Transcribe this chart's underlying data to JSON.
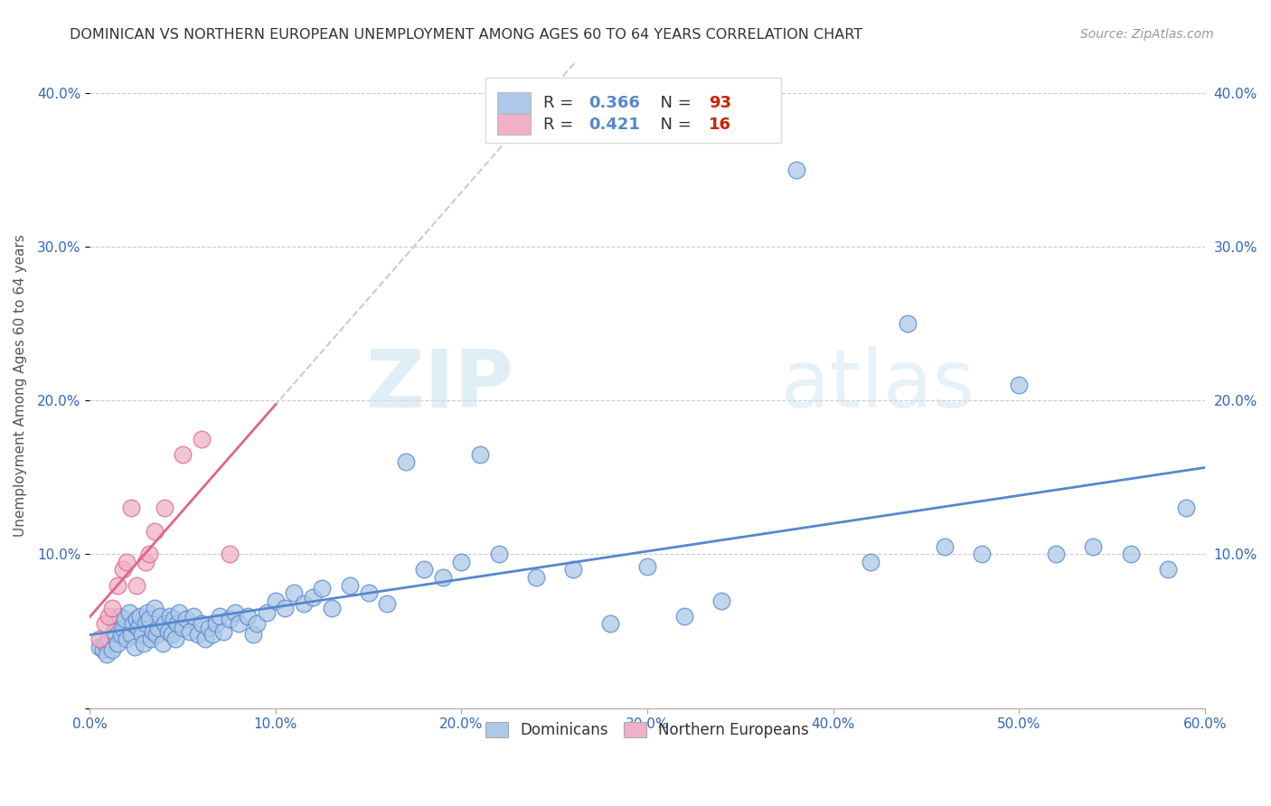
{
  "title": "DOMINICAN VS NORTHERN EUROPEAN UNEMPLOYMENT AMONG AGES 60 TO 64 YEARS CORRELATION CHART",
  "source": "Source: ZipAtlas.com",
  "ylabel": "Unemployment Among Ages 60 to 64 years",
  "xlim": [
    0.0,
    0.6
  ],
  "ylim": [
    0.0,
    0.42
  ],
  "xticks": [
    0.0,
    0.1,
    0.2,
    0.3,
    0.4,
    0.5,
    0.6
  ],
  "yticks": [
    0.0,
    0.1,
    0.2,
    0.3,
    0.4
  ],
  "xticklabels": [
    "0.0%",
    "10.0%",
    "20.0%",
    "30.0%",
    "40.0%",
    "50.0%",
    "60.0%"
  ],
  "yticklabels": [
    "",
    "10.0%",
    "20.0%",
    "30.0%",
    "40.0%"
  ],
  "dominicans_R": 0.366,
  "dominicans_N": 93,
  "northern_R": 0.421,
  "northern_N": 16,
  "dominican_color": "#adc8e8",
  "northern_color": "#f0b0c8",
  "dominican_line_color": "#5588cc",
  "northern_line_color": "#dd6688",
  "legend_label_1": "Dominicans",
  "legend_label_2": "Northern Europeans",
  "watermark_zip": "ZIP",
  "watermark_atlas": "atlas",
  "background_color": "#ffffff",
  "dominicans_x": [
    0.005,
    0.007,
    0.008,
    0.009,
    0.01,
    0.012,
    0.013,
    0.014,
    0.015,
    0.016,
    0.017,
    0.018,
    0.019,
    0.02,
    0.021,
    0.022,
    0.023,
    0.024,
    0.025,
    0.026,
    0.027,
    0.028,
    0.029,
    0.03,
    0.031,
    0.032,
    0.033,
    0.034,
    0.035,
    0.036,
    0.037,
    0.038,
    0.039,
    0.04,
    0.042,
    0.043,
    0.044,
    0.045,
    0.046,
    0.047,
    0.048,
    0.05,
    0.052,
    0.054,
    0.056,
    0.058,
    0.06,
    0.062,
    0.064,
    0.066,
    0.068,
    0.07,
    0.072,
    0.075,
    0.078,
    0.08,
    0.085,
    0.088,
    0.09,
    0.095,
    0.1,
    0.105,
    0.11,
    0.115,
    0.12,
    0.125,
    0.13,
    0.14,
    0.15,
    0.16,
    0.17,
    0.18,
    0.19,
    0.2,
    0.21,
    0.22,
    0.24,
    0.26,
    0.28,
    0.3,
    0.32,
    0.34,
    0.38,
    0.42,
    0.44,
    0.46,
    0.48,
    0.5,
    0.52,
    0.54,
    0.56,
    0.58,
    0.59
  ],
  "dominicans_y": [
    0.04,
    0.038,
    0.042,
    0.035,
    0.045,
    0.038,
    0.05,
    0.055,
    0.042,
    0.06,
    0.048,
    0.052,
    0.058,
    0.045,
    0.062,
    0.048,
    0.055,
    0.04,
    0.058,
    0.052,
    0.06,
    0.048,
    0.042,
    0.055,
    0.062,
    0.058,
    0.045,
    0.05,
    0.065,
    0.048,
    0.052,
    0.06,
    0.042,
    0.055,
    0.05,
    0.06,
    0.048,
    0.058,
    0.045,
    0.055,
    0.062,
    0.052,
    0.058,
    0.05,
    0.06,
    0.048,
    0.055,
    0.045,
    0.052,
    0.048,
    0.055,
    0.06,
    0.05,
    0.058,
    0.062,
    0.055,
    0.06,
    0.048,
    0.055,
    0.062,
    0.07,
    0.065,
    0.075,
    0.068,
    0.072,
    0.078,
    0.065,
    0.08,
    0.075,
    0.068,
    0.16,
    0.09,
    0.085,
    0.095,
    0.165,
    0.1,
    0.085,
    0.09,
    0.055,
    0.092,
    0.06,
    0.07,
    0.35,
    0.095,
    0.25,
    0.105,
    0.1,
    0.21,
    0.1,
    0.105,
    0.1,
    0.09,
    0.13
  ],
  "northern_x": [
    0.005,
    0.008,
    0.01,
    0.012,
    0.015,
    0.018,
    0.02,
    0.022,
    0.025,
    0.03,
    0.032,
    0.035,
    0.04,
    0.05,
    0.06,
    0.075
  ],
  "northern_y": [
    0.045,
    0.055,
    0.06,
    0.065,
    0.08,
    0.09,
    0.095,
    0.13,
    0.08,
    0.095,
    0.1,
    0.115,
    0.13,
    0.165,
    0.175,
    0.1
  ]
}
